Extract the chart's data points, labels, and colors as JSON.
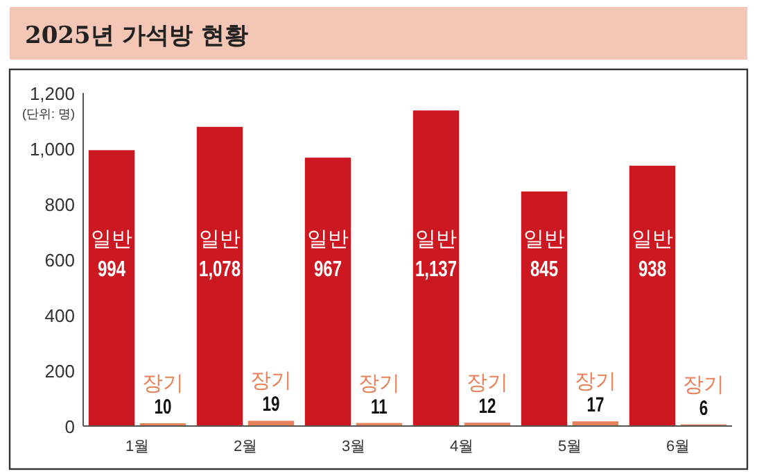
{
  "chart_data": {
    "type": "bar",
    "title": "2025년 가석방 현황",
    "ylabel": "(단위: 명)",
    "categories": [
      "1월",
      "2월",
      "3월",
      "4월",
      "5월",
      "6월"
    ],
    "series": [
      {
        "name": "일반",
        "color": "#cc1820",
        "values": [
          994,
          1078,
          967,
          1137,
          845,
          938
        ],
        "value_labels": [
          "994",
          "1,078",
          "967",
          "1,137",
          "845",
          "938"
        ]
      },
      {
        "name": "장기",
        "color": "#e8825a",
        "values": [
          10,
          19,
          11,
          12,
          17,
          6
        ],
        "value_labels": [
          "10",
          "19",
          "11",
          "12",
          "17",
          "6"
        ]
      }
    ],
    "ylim": [
      0,
      1200
    ],
    "yticks": [
      0,
      200,
      400,
      600,
      800,
      {
        "value": 1000,
        "label": "1,000"
      },
      {
        "value": 1200,
        "label": "1,200"
      }
    ],
    "grid": false,
    "legend": false
  }
}
